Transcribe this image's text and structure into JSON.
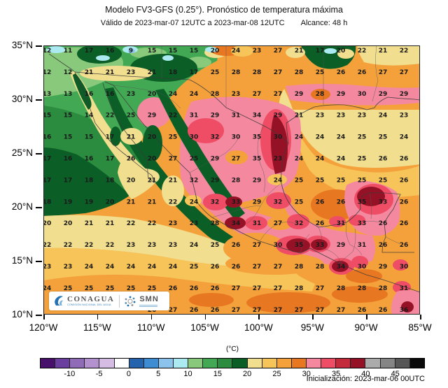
{
  "header": {
    "title": "Modelo FV3-GFS (0.25°). Pronóstico de temperatura máxima",
    "valid": "Válido de 2023-mar-07 12UTC a 2023-mar-08 12UTC",
    "reach": "Alcance: 48 h"
  },
  "footer": {
    "initialization": "Inicialización: 2023-mar-06 00UTC"
  },
  "logos": {
    "conagua": {
      "name": "CONAGUA",
      "subtitle": "COMISIÓN NACIONAL DEL AGUA"
    },
    "smn": {
      "name": "SMN"
    }
  },
  "chart_data": {
    "type": "heatmap",
    "title": "Modelo FV3-GFS (0.25°). Pronóstico de temperatura máxima",
    "subtitle": "Válido de 2023-mar-07 12UTC a 2023-mar-08 12UTC  Alcance: 48 h",
    "unit": "(°C)",
    "lat_ticks": [
      "35°N",
      "30°N",
      "25°N",
      "20°N",
      "15°N",
      "10°N"
    ],
    "lon_ticks": [
      "120°W",
      "115°W",
      "110°W",
      "105°W",
      "100°W",
      "95°W",
      "90°W",
      "85°W"
    ],
    "colorbar": {
      "unit_label": "(°C)",
      "tick_labels": [
        "-10",
        "-5",
        "0",
        "5",
        "10",
        "15",
        "20",
        "25",
        "30",
        "35",
        "40",
        "45"
      ],
      "min": -15,
      "max": 50,
      "step": 2.5,
      "colors": [
        "#46106B",
        "#6B3FA0",
        "#8F6BB8",
        "#B291CE",
        "#D4BCE4",
        "#FFFFFF",
        "#2563AD",
        "#3E8DD3",
        "#8CC3EC",
        "#ACEAF2",
        "#89C97C",
        "#43A854",
        "#2B8C3F",
        "#0B5E26",
        "#F1DE8E",
        "#F6C459",
        "#F4A13B",
        "#E87722",
        "#F4889F",
        "#EF4D66",
        "#C32B3D",
        "#951226",
        "#ABABAB",
        "#858585",
        "#575757",
        "#0A0A0A"
      ]
    },
    "grid_values": [
      [
        "12",
        "11",
        "17",
        "16",
        "9",
        "15",
        "15",
        "15",
        "20",
        "24",
        "23",
        "27",
        "21",
        "17",
        "20",
        "22",
        "21",
        "22"
      ],
      [
        "12",
        "12",
        "21",
        "21",
        "23",
        "21",
        "18",
        "17",
        "25",
        "28",
        "28",
        "27",
        "28",
        "25",
        "26",
        "26",
        "27",
        "27"
      ],
      [
        "13",
        "13",
        "16",
        "16",
        "23",
        "20",
        "24",
        "24",
        "28",
        "23",
        "27",
        "27",
        "29",
        "28",
        "29",
        "30",
        "29",
        "29"
      ],
      [
        "15",
        "15",
        "14",
        "22",
        "25",
        "29",
        "22",
        "31",
        "29",
        "31",
        "34",
        "29",
        "21",
        "23",
        "23",
        "23",
        "24",
        "23"
      ],
      [
        "16",
        "15",
        "15",
        "17",
        "21",
        "20",
        "25",
        "30",
        "32",
        "30",
        "35",
        "30",
        "24",
        "24",
        "24",
        "25",
        "25",
        "24"
      ],
      [
        "17",
        "16",
        "16",
        "17",
        "26",
        "20",
        "27",
        "25",
        "29",
        "27",
        "35",
        "23",
        "24",
        "24",
        "24",
        "25",
        "26",
        "26"
      ],
      [
        "17",
        "17",
        "18",
        "18",
        "20",
        "21",
        "21",
        "32",
        "29",
        "28",
        "29",
        "24",
        "25",
        "25",
        "25",
        "25",
        "25",
        "26"
      ],
      [
        "18",
        "19",
        "19",
        "20",
        "21",
        "21",
        "22",
        "24",
        "32",
        "33",
        "29",
        "32",
        "25",
        "26",
        "26",
        "35",
        "33",
        "26"
      ],
      [
        "20",
        "20",
        "21",
        "21",
        "22",
        "22",
        "23",
        "23",
        "28",
        "34",
        "31",
        "27",
        "32",
        "26",
        "31",
        "33",
        "26",
        "26"
      ],
      [
        "22",
        "22",
        "22",
        "22",
        "23",
        "23",
        "23",
        "24",
        "25",
        "26",
        "27",
        "30",
        "35",
        "33",
        "29",
        "31",
        "26",
        "26"
      ],
      [
        "23",
        "23",
        "24",
        "24",
        "24",
        "24",
        "24",
        "25",
        "26",
        "26",
        "27",
        "27",
        "28",
        "28",
        "34",
        "30",
        "29",
        "30"
      ],
      [
        "24",
        "25",
        "25",
        "25",
        "25",
        "25",
        "26",
        "26",
        "26",
        "27",
        "27",
        "27",
        "28",
        "27",
        "28",
        "28",
        "28",
        "31"
      ],
      [
        "",
        "",
        "",
        "",
        "",
        "26",
        "27",
        "26",
        "26",
        "27",
        "27",
        "27",
        "27",
        "27",
        "27",
        "26",
        "26",
        "36"
      ]
    ]
  }
}
